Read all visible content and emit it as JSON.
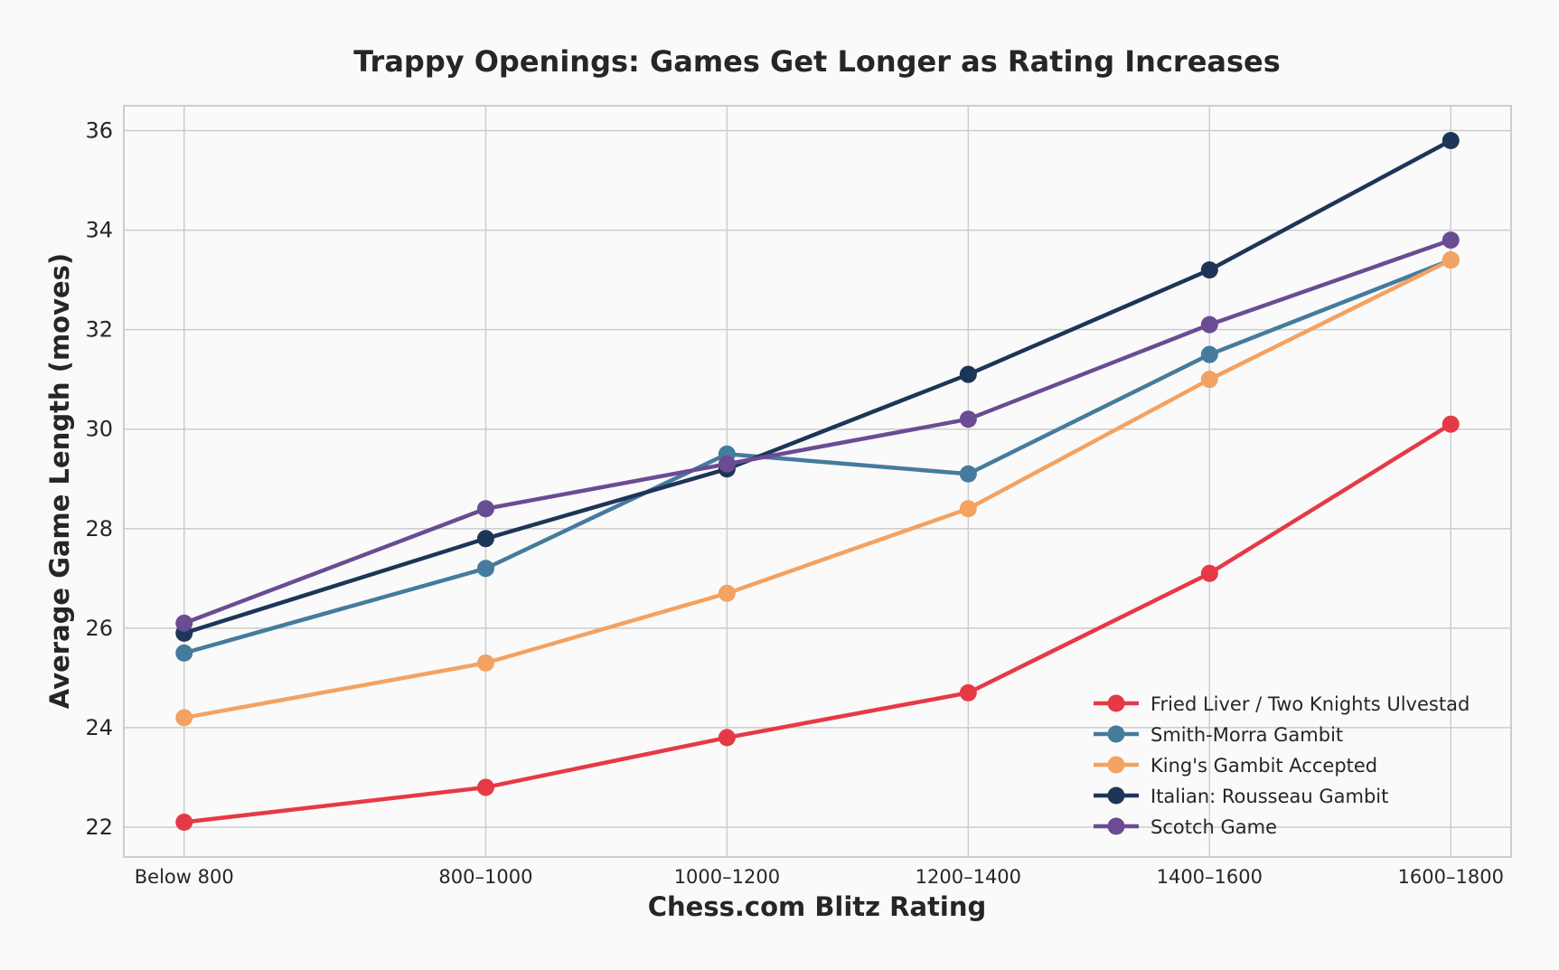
{
  "chart_data": {
    "type": "line",
    "title": "Trappy Openings: Games Get Longer as Rating Increases",
    "xlabel": "Chess.com Blitz Rating",
    "ylabel": "Average Game Length (moves)",
    "categories": [
      "Below 800",
      "800–1000",
      "1000–1200",
      "1200–1400",
      "1400–1600",
      "1600–1800"
    ],
    "x": [
      0,
      1.25,
      2.25,
      3.25,
      4.25,
      5.25
    ],
    "ylim": [
      21.4,
      36.5
    ],
    "yticks": [
      22,
      24,
      26,
      28,
      30,
      32,
      34,
      36
    ],
    "grid": true,
    "legend_position": "bottom-right",
    "series": [
      {
        "name": "Fried Liver / Two Knights Ulvestad",
        "color": "#e63946",
        "values": [
          22.1,
          22.8,
          23.8,
          24.7,
          27.1,
          30.1
        ]
      },
      {
        "name": "Smith-Morra Gambit",
        "color": "#457b9d",
        "values": [
          25.5,
          27.2,
          29.5,
          29.1,
          31.5,
          33.4
        ]
      },
      {
        "name": "King's Gambit Accepted",
        "color": "#f4a261",
        "values": [
          24.2,
          25.3,
          26.7,
          28.4,
          31.0,
          33.4
        ]
      },
      {
        "name": "Italian: Rousseau Gambit",
        "color": "#1d3557",
        "values": [
          25.9,
          27.8,
          29.2,
          31.1,
          33.2,
          35.8
        ]
      },
      {
        "name": "Scotch Game",
        "color": "#6a4c93",
        "values": [
          26.1,
          28.4,
          29.3,
          30.2,
          32.1,
          33.8
        ]
      }
    ]
  }
}
